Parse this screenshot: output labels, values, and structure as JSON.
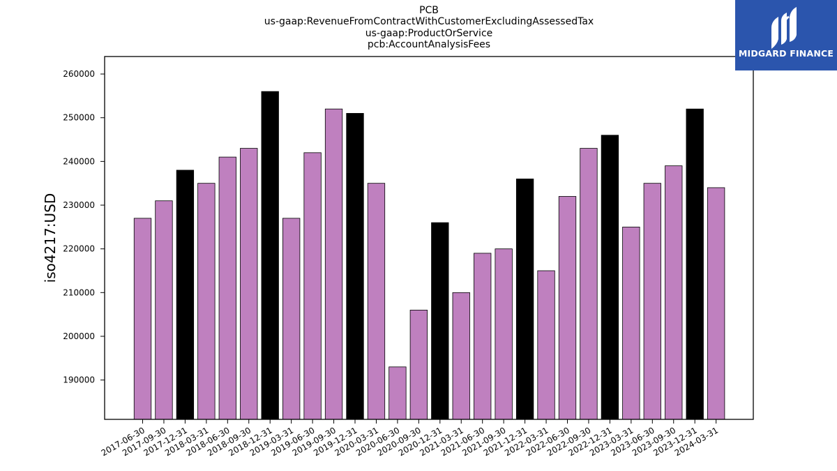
{
  "header": {
    "title_lines": [
      "PCB",
      "us-gaap:RevenueFromContractWithCustomerExcludingAssessedTax",
      "us-gaap:ProductOrService",
      "pcb:AccountAnalysisFees"
    ]
  },
  "logo": {
    "text": "MIDGARD FINANCE",
    "icon": "midgard-logo-icon",
    "background": "#2b55ad"
  },
  "chart_data": {
    "type": "bar",
    "title": "PCB\nus-gaap:RevenueFromContractWithCustomerExcludingAssessedTax\nus-gaap:ProductOrService\npcb:AccountAnalysisFees",
    "xlabel": "",
    "ylabel": "iso4217:USD",
    "ylim": [
      181000,
      264000
    ],
    "yticks": [
      190000,
      200000,
      210000,
      220000,
      230000,
      240000,
      250000,
      260000
    ],
    "grid": false,
    "legend": "none",
    "colors": {
      "quarter": "#bf80bf",
      "year_end": "#000000",
      "edge": "#000000"
    },
    "categories": [
      "2017-06-30",
      "2017-09-30",
      "2017-12-31",
      "2018-03-31",
      "2018-06-30",
      "2018-09-30",
      "2018-12-31",
      "2019-03-31",
      "2019-06-30",
      "2019-09-30",
      "2019-12-31",
      "2020-03-31",
      "2020-06-30",
      "2020-09-30",
      "2020-12-31",
      "2021-03-31",
      "2021-06-30",
      "2021-09-30",
      "2021-12-31",
      "2022-03-31",
      "2022-06-30",
      "2022-09-30",
      "2022-12-31",
      "2023-03-31",
      "2023-06-30",
      "2023-09-30",
      "2023-12-31",
      "2024-03-31"
    ],
    "values": [
      227000,
      231000,
      238000,
      235000,
      241000,
      243000,
      256000,
      227000,
      242000,
      252000,
      251000,
      235000,
      193000,
      206000,
      226000,
      210000,
      219000,
      220000,
      236000,
      215000,
      232000,
      243000,
      246000,
      225000,
      235000,
      239000,
      252000,
      234000
    ]
  }
}
